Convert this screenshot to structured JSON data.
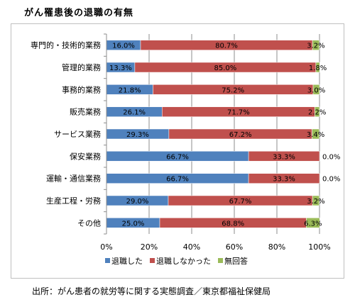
{
  "chart_data": {
    "type": "bar",
    "orientation": "horizontal",
    "stacked": "percent",
    "title": "がん罹患後の退職の有無",
    "categories": [
      "専門的・技術的業務",
      "管理的業務",
      "事務的業務",
      "販売業務",
      "サービス業務",
      "保安業務",
      "運輸・通信業務",
      "生産工程・労務",
      "その他"
    ],
    "series": [
      {
        "name": "退職した",
        "color": "#4f81bd",
        "values": [
          16.0,
          13.3,
          21.8,
          26.1,
          29.3,
          66.7,
          66.7,
          29.0,
          25.0
        ],
        "labels": [
          "16.0%",
          "13.3%",
          "21.8%",
          "26.1%",
          "29.3%",
          "66.7%",
          "66.7%",
          "29.0%",
          "25.0%"
        ]
      },
      {
        "name": "退職しなかった",
        "color": "#c0504d",
        "values": [
          80.7,
          85.0,
          75.2,
          71.7,
          67.2,
          33.3,
          33.3,
          67.7,
          68.8
        ],
        "labels": [
          "80.7%",
          "85.0%",
          "75.2%",
          "71.7%",
          "67.2%",
          "33.3%",
          "33.3%",
          "67.7%",
          "68.8%"
        ]
      },
      {
        "name": "無回答",
        "color": "#9bbb59",
        "values": [
          3.2,
          1.8,
          3.0,
          2.2,
          3.4,
          0.0,
          0.0,
          3.2,
          6.3
        ],
        "labels": [
          "3.2%",
          "1.8%",
          "3.0%",
          "2.2%",
          "3.4%",
          "0.0%",
          "0.0%",
          "3.2%",
          "6.3%"
        ]
      }
    ],
    "xlim": [
      0,
      100
    ],
    "x_ticks": [
      "0%",
      "20%",
      "40%",
      "60%",
      "80%",
      "100%"
    ],
    "grid": true,
    "legend_position": "bottom"
  },
  "source_text": "出所：がん患者の就労等に関する実態調査／東京都福祉保健局"
}
